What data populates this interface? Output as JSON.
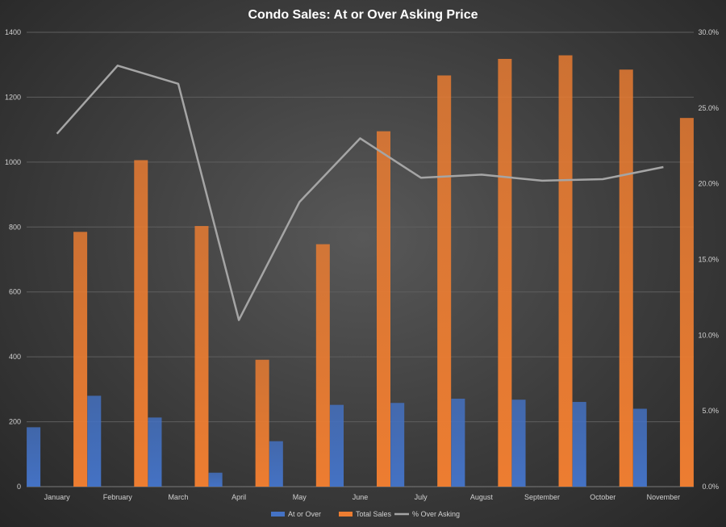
{
  "chart_data": {
    "type": "bar",
    "title": "Condo Sales: At or Over Asking Price",
    "categories": [
      "January",
      "February",
      "March",
      "April",
      "May",
      "June",
      "July",
      "August",
      "September",
      "October",
      "November"
    ],
    "series": [
      {
        "name": "At or Over",
        "type": "bar",
        "axis": "left",
        "color": "#4472c4",
        "values": [
          183,
          280,
          213,
          43,
          140,
          252,
          258,
          271,
          268,
          261,
          240
        ]
      },
      {
        "name": "Total Sales",
        "type": "bar",
        "axis": "left",
        "color": "#ed7d31",
        "values": [
          785,
          1006,
          803,
          391,
          747,
          1095,
          1267,
          1318,
          1329,
          1285,
          1136
        ]
      },
      {
        "name": "% Over Asking",
        "type": "line",
        "axis": "right",
        "color": "#a5a5a5",
        "values": [
          0.233,
          0.278,
          0.266,
          0.11,
          0.188,
          0.23,
          0.204,
          0.206,
          0.202,
          0.203,
          0.211
        ]
      }
    ],
    "y_left": {
      "min": 0,
      "max": 1400,
      "ticks": [
        "0",
        "200",
        "400",
        "600",
        "800",
        "1000",
        "1200",
        "1400"
      ]
    },
    "y_right": {
      "min": 0,
      "max": 0.3,
      "ticks": [
        "0.0%",
        "5.0%",
        "10.0%",
        "15.0%",
        "20.0%",
        "25.0%",
        "30.0%"
      ]
    },
    "grid": true,
    "legend_position": "bottom"
  }
}
